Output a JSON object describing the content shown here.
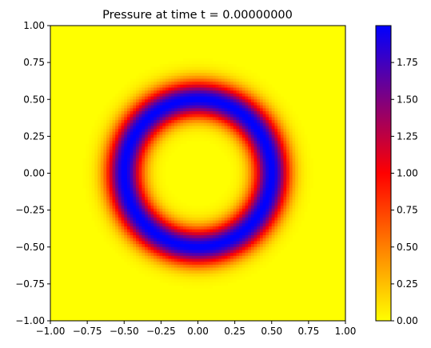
{
  "chart_data": {
    "type": "heatmap",
    "title": "Pressure at time t =     0.00000000",
    "xlabel": "",
    "ylabel": "",
    "xlim": [
      -1.0,
      1.0
    ],
    "ylim": [
      -1.0,
      1.0
    ],
    "x_ticks": [
      -1.0,
      -0.75,
      -0.5,
      -0.25,
      0.0,
      0.25,
      0.5,
      0.75,
      1.0
    ],
    "x_tick_labels": [
      "−1.00",
      "−0.75",
      "−0.50",
      "−0.25",
      "0.00",
      "0.25",
      "0.50",
      "0.75",
      "1.00"
    ],
    "y_ticks": [
      -1.0,
      -0.75,
      -0.5,
      -0.25,
      0.0,
      0.25,
      0.5,
      0.75,
      1.0
    ],
    "y_tick_labels": [
      "−1.00",
      "−0.75",
      "−0.50",
      "−0.25",
      "0.00",
      "0.25",
      "0.50",
      "0.75",
      "1.00"
    ],
    "grid": false,
    "field": {
      "shape": "ring",
      "center": [
        0.0,
        0.0
      ],
      "peak_radius": 0.5,
      "peak_value": 2.0,
      "width": 0.12,
      "background_value": 0.0,
      "grid_resolution": 100
    },
    "colorbar": {
      "range": [
        0.0,
        2.0
      ],
      "ticks": [
        0.0,
        0.25,
        0.5,
        0.75,
        1.0,
        1.25,
        1.5,
        1.75
      ],
      "tick_labels": [
        "0.00",
        "0.25",
        "0.50",
        "0.75",
        "1.00",
        "1.25",
        "1.50",
        "1.75"
      ],
      "colors": [
        "#ffff00",
        "#ff0000",
        "#0000ff"
      ]
    }
  }
}
